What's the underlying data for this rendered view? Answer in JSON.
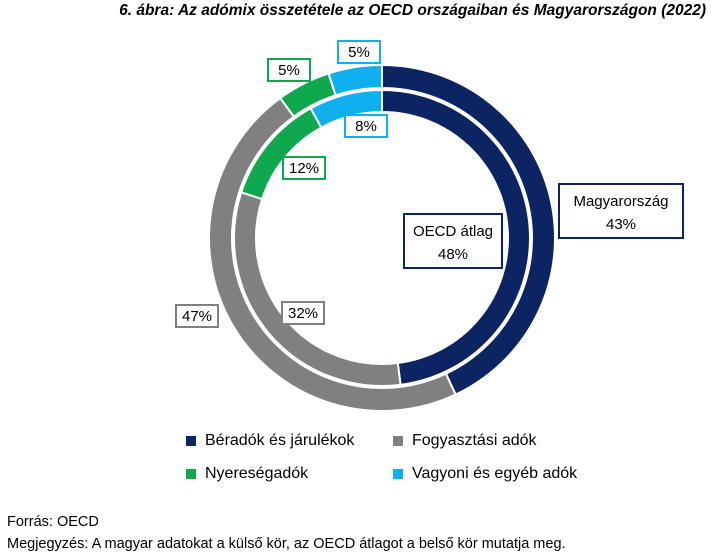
{
  "title": "6. ábra: Az adómix összetétele az OECD országaiban és Magyarországon (2022)",
  "colors": {
    "labor": "#0c2461",
    "consumption": "#808080",
    "profit": "#10a84e",
    "property": "#10b0ee"
  },
  "chart_data": {
    "type": "donut",
    "categories": [
      "Béradók és járulékok",
      "Fogyasztási adók",
      "Nyereségadók",
      "Vagyoni és egyéb adók"
    ],
    "series": [
      {
        "name": "Magyarország",
        "ring": "outer",
        "values": [
          43,
          47,
          5,
          5
        ],
        "labels": [
          "43%",
          "47%",
          "5%",
          "5%"
        ]
      },
      {
        "name": "OECD átlag",
        "ring": "inner",
        "values": [
          48,
          32,
          12,
          8
        ],
        "labels": [
          "48%",
          "32%",
          "12%",
          "8%"
        ]
      }
    ]
  },
  "callouts": {
    "outer_name": "Magyarország",
    "outer_value": "43%",
    "inner_name": "OECD átlag",
    "inner_value": "48%"
  },
  "legend": [
    {
      "label": "Béradók és járulékok",
      "color_key": "labor"
    },
    {
      "label": "Fogyasztási adók",
      "color_key": "consumption"
    },
    {
      "label": "Nyereségadók",
      "color_key": "profit"
    },
    {
      "label": "Vagyoni és egyéb adók",
      "color_key": "property"
    }
  ],
  "footer": {
    "source": "Forrás: OECD",
    "note": "Megjegyzés: A magyar adatokat a külső kör, az OECD átlagot a belső kör mutatja meg."
  }
}
